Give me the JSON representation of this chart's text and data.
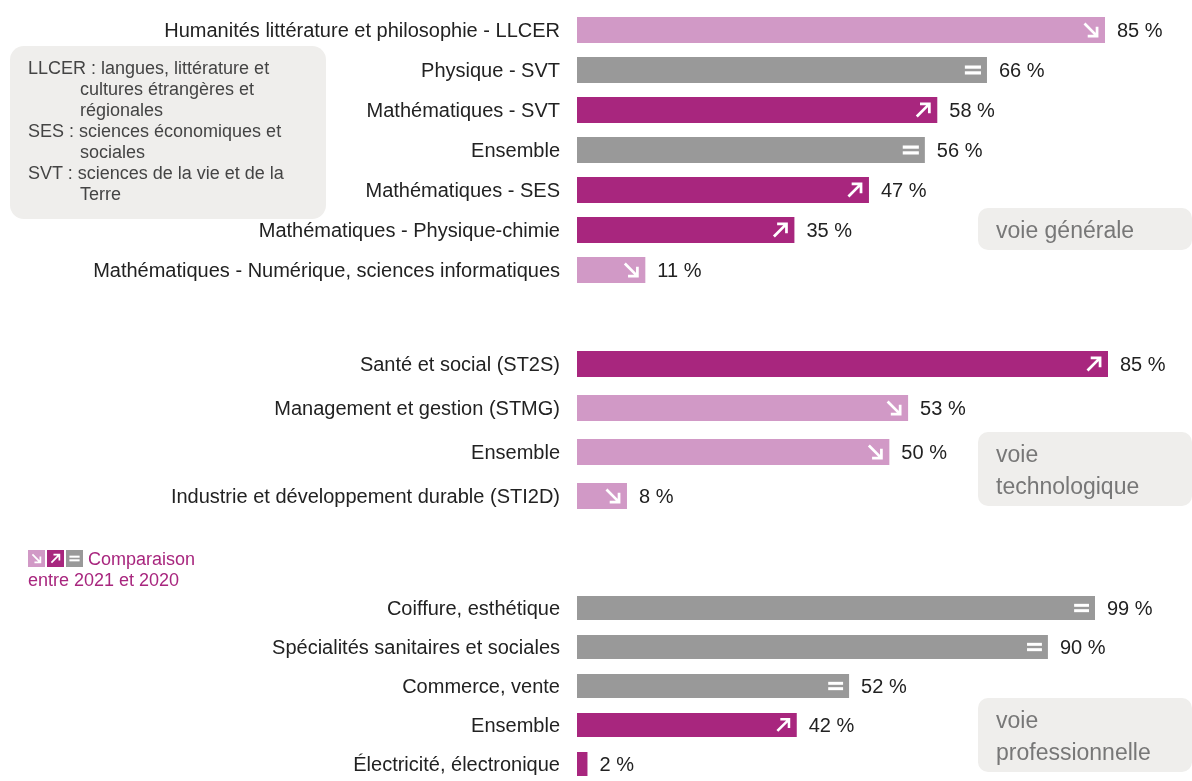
{
  "chart_data": [
    {
      "type": "bar",
      "orientation": "horizontal",
      "stacked": true,
      "title": "voie générale",
      "categories": [
        "Humanités littérature et philosophie - LLCER",
        "Physique - SVT",
        "Mathématiques - SVT",
        "Ensemble",
        "Mathématiques - SES",
        "Mathématiques - Physique-chimie",
        "Mathématiques - Numérique, sciences informatiques"
      ],
      "series": [
        {
          "color": "#d199c6",
          "values": [
            85,
            null,
            null,
            null,
            null,
            null,
            11
          ],
          "value_labels": [
            "85 %",
            null,
            null,
            null,
            null,
            null,
            "11 %"
          ]
        },
        {
          "color": "#a8267e",
          "values": [
            null,
            null,
            58,
            null,
            47,
            35,
            null
          ],
          "value_labels": [
            null,
            null,
            "58 %",
            null,
            "47 %",
            "35 %",
            null
          ]
        },
        {
          "color": "#999999",
          "values": [
            null,
            66,
            null,
            56,
            null,
            null,
            null
          ],
          "value_labels": [
            null,
            "66 %",
            null,
            "56 %",
            null,
            null,
            null
          ]
        }
      ],
      "annotations": [
        "LLCER : langues, littérature et cultures étrangères et régionales",
        "SES : sciences économiques et sociales",
        "SVT : sciences de la vie et de la Terre"
      ],
      "legend_title": "Comparaison entre 2021 et 2020"
    },
    {
      "type": "bar",
      "orientation": "horizontal",
      "stacked": true,
      "title": "voie technologique",
      "categories": [
        "Santé et social (ST2S)",
        "Management et gestion (STMG)",
        "Ensemble",
        "Industrie et développement durable (STI2D)"
      ],
      "series": [
        {
          "color": "#d199c6",
          "values": [
            null,
            53,
            50,
            8
          ],
          "value_labels": [
            null,
            "53 %",
            "50 %",
            "8 %"
          ]
        },
        {
          "color": "#a8267e",
          "values": [
            85,
            null,
            null,
            null
          ],
          "value_labels": [
            "85 %",
            null,
            null,
            null
          ]
        }
      ]
    },
    {
      "type": "bar",
      "orientation": "horizontal",
      "stacked": true,
      "title": "voie professionnelle",
      "categories": [
        "Coiffure, esthétique",
        "Spécialités sanitaires et sociales",
        "Commerce, vente",
        "Ensemble",
        "Électricité, électronique"
      ],
      "series": [
        {
          "color": "#a8267e",
          "values": [
            null,
            null,
            null,
            42,
            2
          ],
          "value_labels": [
            null,
            null,
            null,
            "42 %",
            "2 %"
          ]
        },
        {
          "color": "#999999",
          "values": [
            99,
            90,
            52,
            null,
            null
          ],
          "value_labels": [
            "99 %",
            "90 %",
            "52 %",
            null,
            null
          ]
        }
      ]
    }
  ]
}
